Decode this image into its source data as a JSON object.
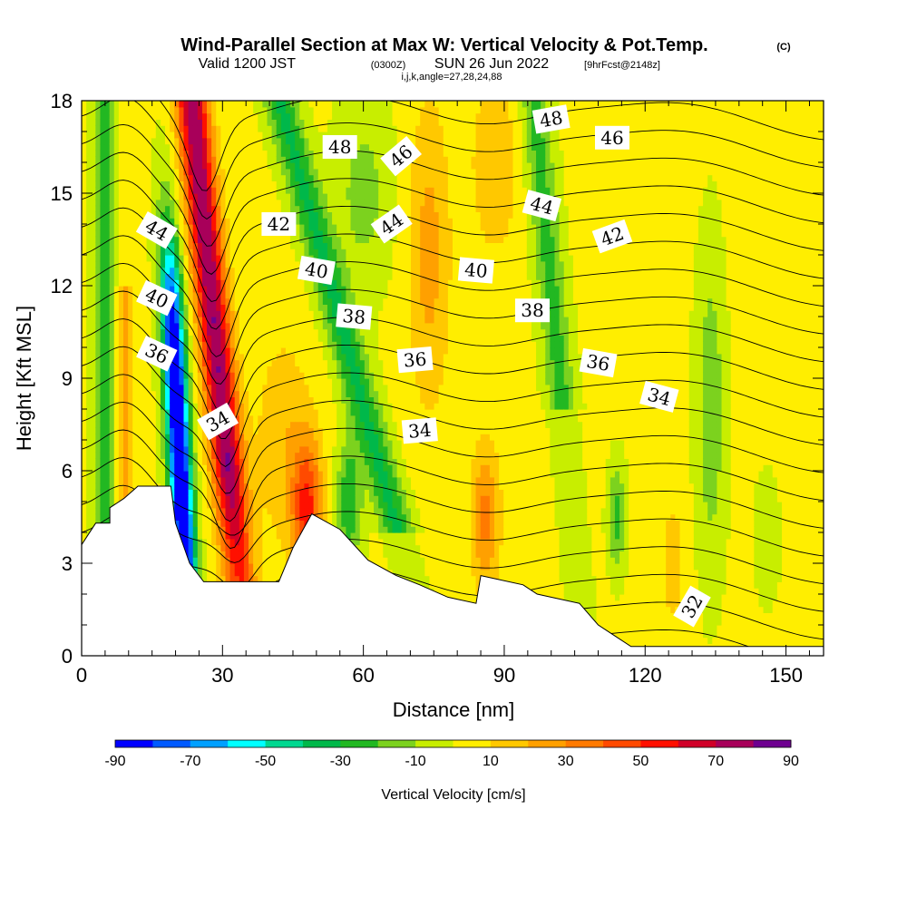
{
  "title": {
    "main": "Wind-Parallel Section at Max W: Vertical Velocity & Pot.Temp.",
    "copyright": "(C)",
    "valid_prefix": "Valid 1200 JST",
    "valid_zulu": "(0300Z)",
    "valid_date": "SUN 26 Jun 2022",
    "forecast": "[9hrFcst@2148z]",
    "indices": "i,j,k,angle=27,28,24,88"
  },
  "chart_data": {
    "type": "heatmap",
    "xlabel": "Distance [nm]",
    "ylabel": "Height [Kft MSL]",
    "xlim": [
      0,
      158
    ],
    "ylim": [
      0,
      18
    ],
    "x_ticks": [
      0,
      30,
      60,
      90,
      120,
      150
    ],
    "y_ticks": [
      0,
      3,
      6,
      9,
      12,
      15,
      18
    ],
    "colorbar": {
      "label": "Vertical Velocity [cm/s]",
      "range": [
        -90,
        90
      ],
      "tick_labels": [
        "-90",
        "-70",
        "-50",
        "-30",
        "-10",
        "10",
        "30",
        "50",
        "70",
        "90"
      ],
      "colors": [
        "#0000ff",
        "#005aff",
        "#00a0ff",
        "#00ffff",
        "#00d890",
        "#00b84a",
        "#22b822",
        "#7cd21e",
        "#c8ee00",
        "#ffee00",
        "#ffc800",
        "#ffa000",
        "#ff7a00",
        "#ff4a00",
        "#ff1000",
        "#d00028",
        "#a8005a",
        "#6e0090"
      ]
    },
    "updraft_max": {
      "x": 23,
      "y": 18,
      "value": 65
    },
    "downdraft_min": {
      "x": 20,
      "y": 8,
      "value": -85
    },
    "terrain": [
      {
        "x": 0,
        "h": 3.6
      },
      {
        "x": 3,
        "h": 4.3
      },
      {
        "x": 6,
        "h": 4.3
      },
      {
        "x": 6,
        "h": 4.8
      },
      {
        "x": 9,
        "h": 5.1
      },
      {
        "x": 12,
        "h": 5.5
      },
      {
        "x": 19,
        "h": 5.5
      },
      {
        "x": 20,
        "h": 4.3
      },
      {
        "x": 23,
        "h": 3.0
      },
      {
        "x": 26,
        "h": 2.4
      },
      {
        "x": 42,
        "h": 2.4
      },
      {
        "x": 45,
        "h": 3.5
      },
      {
        "x": 49,
        "h": 4.6
      },
      {
        "x": 55,
        "h": 4.1
      },
      {
        "x": 58,
        "h": 3.6
      },
      {
        "x": 61,
        "h": 3.1
      },
      {
        "x": 67,
        "h": 2.6
      },
      {
        "x": 72,
        "h": 2.3
      },
      {
        "x": 78,
        "h": 1.9
      },
      {
        "x": 84,
        "h": 1.7
      },
      {
        "x": 85,
        "h": 2.6
      },
      {
        "x": 94,
        "h": 2.3
      },
      {
        "x": 97,
        "h": 2.0
      },
      {
        "x": 106,
        "h": 1.7
      },
      {
        "x": 110,
        "h": 1.0
      },
      {
        "x": 113,
        "h": 0.7
      },
      {
        "x": 117,
        "h": 0.3
      },
      {
        "x": 128,
        "h": 0.3
      },
      {
        "x": 150,
        "h": 0.3
      }
    ],
    "contours": [
      {
        "label": "32",
        "label_x": 130,
        "label_y": 1.6,
        "angle": -60
      },
      {
        "label": "34",
        "label_x": 29,
        "label_y": 7.6,
        "angle": -30
      },
      {
        "label": "34",
        "label_x": 72,
        "label_y": 7.3,
        "angle": -5
      },
      {
        "label": "34",
        "label_x": 123,
        "label_y": 8.4,
        "angle": 15
      },
      {
        "label": "36",
        "label_x": 16,
        "label_y": 9.8,
        "angle": 25
      },
      {
        "label": "36",
        "label_x": 71,
        "label_y": 9.6,
        "angle": -5
      },
      {
        "label": "36",
        "label_x": 110,
        "label_y": 9.5,
        "angle": 10
      },
      {
        "label": "38",
        "label_x": 58,
        "label_y": 11.0,
        "angle": 5
      },
      {
        "label": "38",
        "label_x": 96,
        "label_y": 11.2,
        "angle": 0
      },
      {
        "label": "40",
        "label_x": 16,
        "label_y": 11.6,
        "angle": 25
      },
      {
        "label": "40",
        "label_x": 50,
        "label_y": 12.5,
        "angle": 10
      },
      {
        "label": "40",
        "label_x": 84,
        "label_y": 12.5,
        "angle": 5
      },
      {
        "label": "42",
        "label_x": 42,
        "label_y": 14.0,
        "angle": 0
      },
      {
        "label": "42",
        "label_x": 113,
        "label_y": 13.6,
        "angle": -20
      },
      {
        "label": "44",
        "label_x": 16,
        "label_y": 13.8,
        "angle": 30
      },
      {
        "label": "44",
        "label_x": 66,
        "label_y": 14.0,
        "angle": -35
      },
      {
        "label": "44",
        "label_x": 98,
        "label_y": 14.6,
        "angle": 15
      },
      {
        "label": "46",
        "label_x": 68,
        "label_y": 16.2,
        "angle": -40
      },
      {
        "label": "46",
        "label_x": 113,
        "label_y": 16.8,
        "angle": 0
      },
      {
        "label": "48",
        "label_x": 55,
        "label_y": 16.5,
        "angle": 0
      },
      {
        "label": "48",
        "label_x": 100,
        "label_y": 17.4,
        "angle": -10
      }
    ],
    "isentrope_theta": [
      30,
      31,
      32,
      33,
      34,
      35,
      36,
      37,
      38,
      39,
      40,
      41,
      42,
      43,
      44,
      45,
      46,
      47,
      48,
      49,
      50
    ]
  }
}
